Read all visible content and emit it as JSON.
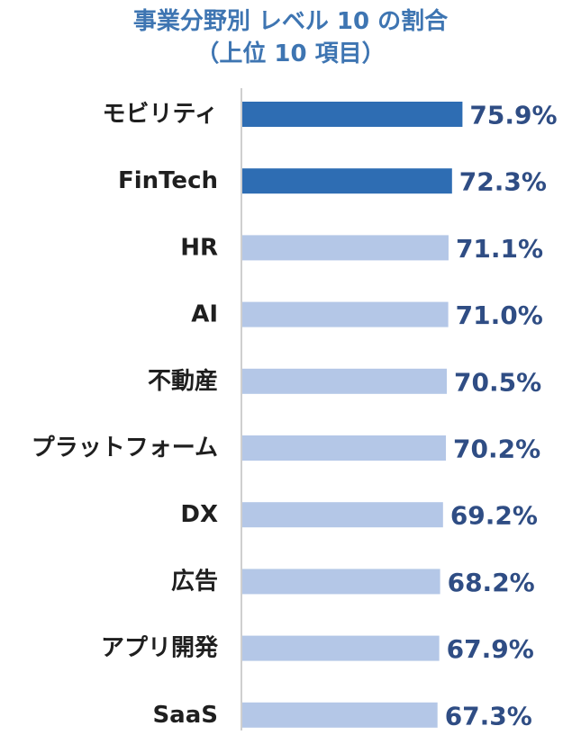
{
  "chart_data": {
    "type": "bar",
    "orientation": "horizontal",
    "title": "事業分野別 レベル 10 の割合",
    "subtitle": "（上位 10 項目）",
    "categories": [
      "モビリティ",
      "FinTech",
      "HR",
      "AI",
      "不動産",
      "プラットフォーム",
      "DX",
      "広告",
      "アプリ開発",
      "SaaS"
    ],
    "values": [
      75.9,
      72.3,
      71.1,
      71.0,
      70.5,
      70.2,
      69.2,
      68.2,
      67.9,
      67.3
    ],
    "value_labels": [
      "75.9%",
      "72.3%",
      "71.1%",
      "71.0%",
      "70.5%",
      "70.2%",
      "69.2%",
      "68.2%",
      "67.9%",
      "67.3%"
    ],
    "highlighted_count": 2,
    "colors": {
      "highlight": "#2e6db3",
      "normal": "#b4c7e7",
      "title": "#3e75b2",
      "value_label": "#2f4d84",
      "category_label": "#1f1f1f",
      "axis": "#bfbfbf"
    },
    "grid": false,
    "legend": "none"
  }
}
